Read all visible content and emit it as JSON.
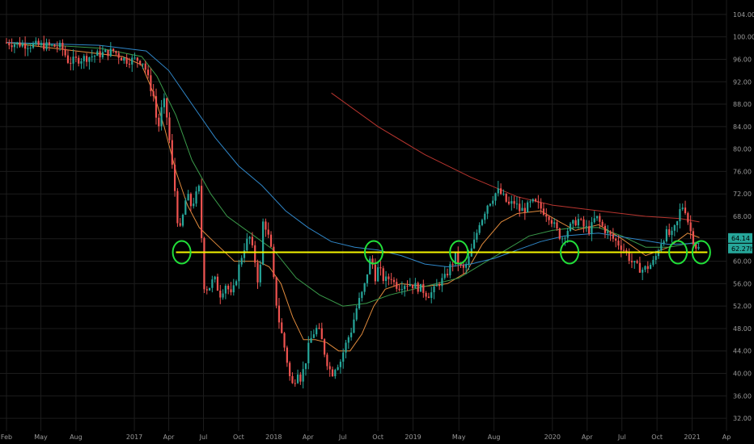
{
  "chart_data": {
    "type": "candlestick",
    "x_start": "2016-02-01",
    "x_end": "2021-04-01",
    "ylim": [
      30,
      106
    ],
    "grid": true,
    "y_ticks": [
      32,
      36,
      40,
      44,
      48,
      52,
      56,
      60,
      64,
      68,
      72,
      76,
      80,
      84,
      88,
      92,
      96,
      100,
      104
    ],
    "x_ticks": [
      {
        "label": "Feb",
        "date": "2016-02-01"
      },
      {
        "label": "May",
        "date": "2016-05-01"
      },
      {
        "label": "Aug",
        "date": "2016-08-01"
      },
      {
        "label": "2017",
        "date": "2017-01-01"
      },
      {
        "label": "Apr",
        "date": "2017-04-01"
      },
      {
        "label": "Jul",
        "date": "2017-07-01"
      },
      {
        "label": "Oct",
        "date": "2017-10-01"
      },
      {
        "label": "2018",
        "date": "2018-01-01"
      },
      {
        "label": "Apr",
        "date": "2018-04-01"
      },
      {
        "label": "Jul",
        "date": "2018-07-01"
      },
      {
        "label": "Oct",
        "date": "2018-10-01"
      },
      {
        "label": "2019",
        "date": "2019-01-01"
      },
      {
        "label": "May",
        "date": "2019-05-01"
      },
      {
        "label": "Aug",
        "date": "2019-08-01"
      },
      {
        "label": "2020",
        "date": "2020-01-01"
      },
      {
        "label": "Apr",
        "date": "2020-04-01"
      },
      {
        "label": "Jul",
        "date": "2020-07-01"
      },
      {
        "label": "Oct",
        "date": "2020-10-01"
      },
      {
        "label": "2021",
        "date": "2021-01-01"
      },
      {
        "label": "Ap",
        "date": "2021-04-01"
      }
    ],
    "price_path": [
      [
        "2016-02-01",
        99
      ],
      [
        "2016-03-01",
        98.8
      ],
      [
        "2016-04-01",
        98.6
      ],
      [
        "2016-05-01",
        98.5
      ],
      [
        "2016-06-01",
        98.4
      ],
      [
        "2016-07-01",
        98.2
      ],
      [
        "2016-07-20",
        95.5
      ],
      [
        "2016-08-15",
        96
      ],
      [
        "2016-09-15",
        96.5
      ],
      [
        "2016-10-15",
        97
      ],
      [
        "2016-11-15",
        97.5
      ],
      [
        "2016-12-01",
        96.5
      ],
      [
        "2016-12-20",
        95.8
      ],
      [
        "2017-01-15",
        96
      ],
      [
        "2017-02-01",
        95.5
      ],
      [
        "2017-02-15",
        92
      ],
      [
        "2017-03-01",
        89
      ],
      [
        "2017-03-10",
        83
      ],
      [
        "2017-03-25",
        89
      ],
      [
        "2017-04-05",
        85
      ],
      [
        "2017-04-15",
        78
      ],
      [
        "2017-04-25",
        72
      ],
      [
        "2017-05-05",
        64.5
      ],
      [
        "2017-05-15",
        68
      ],
      [
        "2017-05-25",
        72
      ],
      [
        "2017-06-05",
        70
      ],
      [
        "2017-06-15",
        71
      ],
      [
        "2017-06-25",
        73
      ],
      [
        "2017-07-01",
        72.5
      ],
      [
        "2017-07-05",
        56
      ],
      [
        "2017-07-20",
        55
      ],
      [
        "2017-08-05",
        57
      ],
      [
        "2017-08-20",
        54
      ],
      [
        "2017-09-05",
        56
      ],
      [
        "2017-09-20",
        53.5
      ],
      [
        "2017-10-05",
        58
      ],
      [
        "2017-10-20",
        62
      ],
      [
        "2017-11-05",
        64.5
      ],
      [
        "2017-11-20",
        60
      ],
      [
        "2017-12-01",
        55
      ],
      [
        "2017-12-10",
        67
      ],
      [
        "2017-12-20",
        66
      ],
      [
        "2018-01-01",
        62
      ],
      [
        "2018-01-10",
        55
      ],
      [
        "2018-01-20",
        50
      ],
      [
        "2018-02-01",
        46
      ],
      [
        "2018-02-10",
        43
      ],
      [
        "2018-02-20",
        39
      ],
      [
        "2018-03-01",
        37.5
      ],
      [
        "2018-03-10",
        41
      ],
      [
        "2018-03-20",
        39
      ],
      [
        "2018-04-01",
        42
      ],
      [
        "2018-04-10",
        45
      ],
      [
        "2018-04-20",
        47
      ],
      [
        "2018-05-01",
        48
      ],
      [
        "2018-05-10",
        47
      ],
      [
        "2018-05-20",
        44
      ],
      [
        "2018-06-01",
        41
      ],
      [
        "2018-06-10",
        40
      ],
      [
        "2018-06-20",
        41.5
      ],
      [
        "2018-07-01",
        42
      ],
      [
        "2018-07-10",
        44
      ],
      [
        "2018-07-20",
        46
      ],
      [
        "2018-08-01",
        48
      ],
      [
        "2018-08-10",
        51
      ],
      [
        "2018-08-20",
        53
      ],
      [
        "2018-09-01",
        55
      ],
      [
        "2018-09-10",
        58
      ],
      [
        "2018-09-20",
        61
      ],
      [
        "2018-09-30",
        57
      ],
      [
        "2018-10-10",
        59
      ],
      [
        "2018-10-20",
        57
      ],
      [
        "2018-11-01",
        56.5
      ],
      [
        "2018-11-10",
        57.5
      ],
      [
        "2018-11-20",
        56
      ],
      [
        "2018-12-01",
        55.5
      ],
      [
        "2018-12-15",
        56
      ],
      [
        "2019-01-01",
        56
      ],
      [
        "2019-01-15",
        55.5
      ],
      [
        "2019-02-01",
        55
      ],
      [
        "2019-02-15",
        54
      ],
      [
        "2019-03-01",
        54.5
      ],
      [
        "2019-03-15",
        56
      ],
      [
        "2019-04-01",
        57
      ],
      [
        "2019-04-15",
        59
      ],
      [
        "2019-05-01",
        61
      ],
      [
        "2019-05-10",
        59
      ],
      [
        "2019-05-20",
        58.5
      ],
      [
        "2019-06-01",
        60
      ],
      [
        "2019-06-10",
        62
      ],
      [
        "2019-06-20",
        64
      ],
      [
        "2019-07-01",
        67
      ],
      [
        "2019-07-10",
        68
      ],
      [
        "2019-07-20",
        70
      ],
      [
        "2019-08-01",
        71
      ],
      [
        "2019-08-10",
        72
      ],
      [
        "2019-08-20",
        72.5
      ],
      [
        "2019-09-01",
        71.5
      ],
      [
        "2019-09-15",
        70
      ],
      [
        "2019-10-01",
        70.5
      ],
      [
        "2019-10-15",
        69
      ],
      [
        "2019-11-01",
        69.5
      ],
      [
        "2019-11-15",
        70.5
      ],
      [
        "2019-12-01",
        70
      ],
      [
        "2019-12-15",
        69
      ],
      [
        "2020-01-01",
        68
      ],
      [
        "2020-01-15",
        66
      ],
      [
        "2020-02-01",
        64
      ],
      [
        "2020-02-15",
        65.5
      ],
      [
        "2020-03-01",
        66.5
      ],
      [
        "2020-03-15",
        67.5
      ],
      [
        "2020-04-01",
        66
      ],
      [
        "2020-04-15",
        65.5
      ],
      [
        "2020-05-01",
        68
      ],
      [
        "2020-05-10",
        67
      ],
      [
        "2020-05-20",
        66
      ],
      [
        "2020-06-01",
        65
      ],
      [
        "2020-06-15",
        64
      ],
      [
        "2020-07-01",
        63
      ],
      [
        "2020-07-15",
        62
      ],
      [
        "2020-08-01",
        60
      ],
      [
        "2020-08-15",
        59
      ],
      [
        "2020-09-01",
        58.5
      ],
      [
        "2020-09-15",
        59
      ],
      [
        "2020-10-01",
        60
      ],
      [
        "2020-10-15",
        63
      ],
      [
        "2020-11-01",
        65
      ],
      [
        "2020-11-15",
        64.5
      ],
      [
        "2020-12-01",
        67
      ],
      [
        "2020-12-10",
        70
      ],
      [
        "2020-12-20",
        69.5
      ],
      [
        "2021-01-01",
        66
      ],
      [
        "2021-01-10",
        64
      ],
      [
        "2021-01-20",
        62.3
      ]
    ],
    "moving_averages": [
      {
        "color": "#e08a3c",
        "points": [
          [
            "2016-02-01",
            99
          ],
          [
            "2016-08-01",
            97.5
          ],
          [
            "2016-12-01",
            96.5
          ],
          [
            "2017-01-20",
            95
          ],
          [
            "2017-02-20",
            90
          ],
          [
            "2017-03-20",
            84
          ],
          [
            "2017-04-20",
            76
          ],
          [
            "2017-05-20",
            70
          ],
          [
            "2017-06-20",
            66
          ],
          [
            "2017-07-20",
            64
          ],
          [
            "2017-08-20",
            62
          ],
          [
            "2017-09-20",
            60
          ],
          [
            "2017-10-20",
            60
          ],
          [
            "2017-11-20",
            60
          ],
          [
            "2017-12-20",
            59
          ],
          [
            "2018-01-20",
            56
          ],
          [
            "2018-02-20",
            50
          ],
          [
            "2018-03-20",
            46
          ],
          [
            "2018-04-20",
            46
          ],
          [
            "2018-05-20",
            45.5
          ],
          [
            "2018-06-20",
            44
          ],
          [
            "2018-07-20",
            44
          ],
          [
            "2018-08-20",
            47
          ],
          [
            "2018-09-20",
            52
          ],
          [
            "2018-10-20",
            55
          ],
          [
            "2018-12-01",
            56
          ],
          [
            "2019-02-01",
            55.5
          ],
          [
            "2019-04-01",
            56
          ],
          [
            "2019-05-20",
            58
          ],
          [
            "2019-07-01",
            63
          ],
          [
            "2019-08-20",
            67
          ],
          [
            "2019-10-01",
            68.5
          ],
          [
            "2019-12-01",
            69
          ],
          [
            "2020-01-20",
            67
          ],
          [
            "2020-03-01",
            65.5
          ],
          [
            "2020-05-01",
            66.5
          ],
          [
            "2020-07-01",
            64
          ],
          [
            "2020-09-01",
            61
          ],
          [
            "2020-11-01",
            62.5
          ],
          [
            "2020-12-20",
            65
          ],
          [
            "2021-01-20",
            64.2
          ]
        ]
      },
      {
        "color": "#3a9a4a",
        "points": [
          [
            "2016-02-01",
            99
          ],
          [
            "2016-10-01",
            98
          ],
          [
            "2017-01-20",
            96.5
          ],
          [
            "2017-03-01",
            93
          ],
          [
            "2017-04-20",
            86
          ],
          [
            "2017-06-01",
            78
          ],
          [
            "2017-07-20",
            72
          ],
          [
            "2017-09-01",
            68
          ],
          [
            "2017-11-01",
            65
          ],
          [
            "2018-01-01",
            62
          ],
          [
            "2018-03-01",
            57
          ],
          [
            "2018-05-01",
            54
          ],
          [
            "2018-07-01",
            52
          ],
          [
            "2018-09-01",
            52.5
          ],
          [
            "2018-11-01",
            54
          ],
          [
            "2019-02-01",
            55.5
          ],
          [
            "2019-05-01",
            57
          ],
          [
            "2019-07-01",
            59.5
          ],
          [
            "2019-09-01",
            62
          ],
          [
            "2019-11-01",
            64.5
          ],
          [
            "2020-01-01",
            65.5
          ],
          [
            "2020-03-01",
            66
          ],
          [
            "2020-05-01",
            66
          ],
          [
            "2020-07-01",
            64.5
          ],
          [
            "2020-09-01",
            62.5
          ],
          [
            "2020-11-01",
            62.5
          ],
          [
            "2021-01-20",
            63.5
          ]
        ]
      },
      {
        "color": "#2f86c8",
        "points": [
          [
            "2016-02-01",
            99
          ],
          [
            "2016-10-01",
            98.5
          ],
          [
            "2017-02-01",
            97.5
          ],
          [
            "2017-04-01",
            94
          ],
          [
            "2017-06-01",
            88
          ],
          [
            "2017-08-01",
            82
          ],
          [
            "2017-10-01",
            77
          ],
          [
            "2017-12-01",
            73.5
          ],
          [
            "2018-02-01",
            69
          ],
          [
            "2018-04-01",
            66
          ],
          [
            "2018-06-01",
            63.5
          ],
          [
            "2018-08-01",
            62.5
          ],
          [
            "2018-10-01",
            62
          ],
          [
            "2018-12-01",
            61
          ],
          [
            "2019-02-01",
            59.5
          ],
          [
            "2019-04-01",
            59
          ],
          [
            "2019-06-01",
            59.5
          ],
          [
            "2019-08-01",
            60.5
          ],
          [
            "2019-10-01",
            62
          ],
          [
            "2019-12-01",
            63.5
          ],
          [
            "2020-02-01",
            64.5
          ],
          [
            "2020-05-01",
            65
          ],
          [
            "2020-08-01",
            64
          ],
          [
            "2020-11-01",
            63
          ],
          [
            "2021-01-20",
            63.2
          ]
        ]
      },
      {
        "color": "#b8352f",
        "points": [
          [
            "2018-06-01",
            90
          ],
          [
            "2018-10-01",
            84
          ],
          [
            "2019-02-01",
            79
          ],
          [
            "2019-06-01",
            75
          ],
          [
            "2019-10-01",
            71.5
          ],
          [
            "2020-01-01",
            70
          ],
          [
            "2020-05-01",
            69
          ],
          [
            "2020-09-01",
            68
          ],
          [
            "2020-12-01",
            67.6
          ],
          [
            "2021-01-20",
            67
          ]
        ]
      }
    ],
    "horizontal_line": {
      "value": 61.6,
      "color": "#f5f500"
    },
    "highlight_circles": [
      "2017-05-05",
      "2018-09-20",
      "2019-05-01",
      "2020-02-15",
      "2020-11-25",
      "2021-01-25"
    ],
    "price_labels": [
      {
        "text": "64.14",
        "value": 64.14,
        "color": "#26a69a"
      },
      {
        "text": "62.27h",
        "value": 62.27,
        "color": "#26a69a"
      }
    ]
  }
}
